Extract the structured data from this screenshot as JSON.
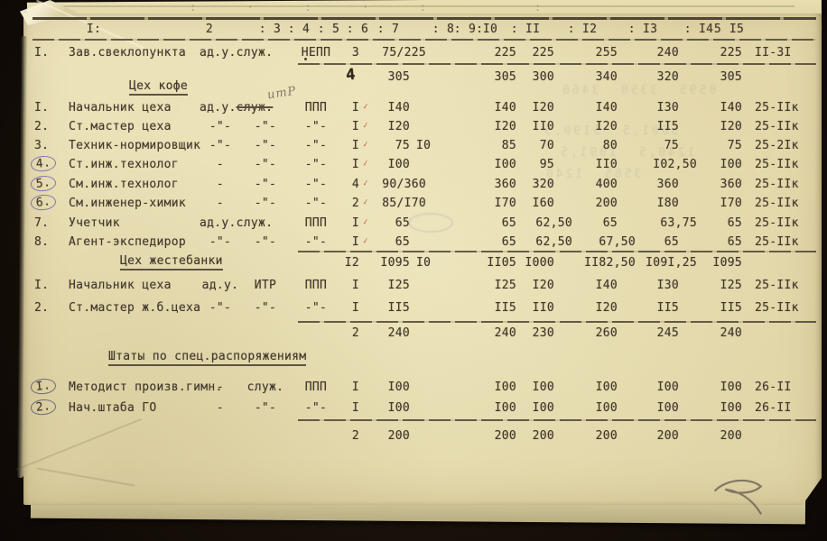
{
  "document": {
    "kind": "Typewritten staff schedule page (Russian), scanned archival sheet",
    "header_cells": [
      "I:",
      "2",
      ": 3",
      ": 4",
      ": 5",
      ": 6",
      ": 7",
      ": 8",
      ": 9:",
      "I0",
      ": II",
      ": I2",
      ": I3",
      ": I4",
      "5",
      "I5"
    ],
    "sections": {
      "coffee": "Цех кофе",
      "tin": "Цех жестебанки",
      "special": "Штаты по спец.распоряжениям"
    },
    "rows": [
      {
        "id": "r1",
        "num": "I.",
        "name": "Зав.свеклопункта",
        "cells": {
          "c34": "ад.у.служ.",
          "c5": "НЕПП",
          "c6": "3",
          "c7": "75/225",
          "c10": "225",
          "c11": "225",
          "c12": "255",
          "c13": "240",
          "c14": "225",
          "c15": "II-3I"
        }
      },
      {
        "id": "t1",
        "cells": {
          "c7": "305",
          "c10": "305",
          "c11": "300",
          "c12": "340",
          "c13": "320",
          "c14": "305"
        }
      },
      {
        "id": "k1",
        "num": "I.",
        "name": "Начальник цеха",
        "struck": [
          "ад.у.",
          "служ."
        ],
        "cells": {
          "c5": "ППП",
          "c6": "I",
          "c7": "I40",
          "c10": "I40",
          "c11": "I20",
          "c12": "I40",
          "c13": "I30",
          "c14": "I40",
          "c15": "25-IIк"
        },
        "tick": true
      },
      {
        "id": "k2",
        "num": "2.",
        "name": "Ст.мастер цеха",
        "cells": {
          "c3": "-\"-",
          "c4": "-\"-",
          "c5": "-\"-",
          "c6": "I",
          "c7": "I20",
          "c10": "I20",
          "c11": "II0",
          "c12": "I20",
          "c13": "II5",
          "c14": "I20",
          "c15": "25-IIк"
        },
        "tick": true
      },
      {
        "id": "k3",
        "num": "3.",
        "name": "Техник-нормировщик",
        "cells": {
          "c3": "-\"-",
          "c4": "-\"-",
          "c5": "-\"-",
          "c6": "I",
          "c7": "75",
          "c89": "I0",
          "c10": "85",
          "c11": "70",
          "c12": "80",
          "c13": "75",
          "c14": "75",
          "c15": "25-2Iк"
        },
        "tick": true
      },
      {
        "id": "k4",
        "num": "4.",
        "circled": true,
        "name": "Ст.инж.технолог",
        "cells": {
          "c3": "-",
          "c4": "-\"-",
          "c5": "-\"-",
          "c6": "I",
          "c7": "I00",
          "c10": "I00",
          "c11": "95",
          "c12": "II0",
          "c13": "I02,50",
          "c14": "I00",
          "c15": "25-IIк"
        },
        "tick": true
      },
      {
        "id": "k5",
        "num": "5.",
        "circled": true,
        "name": "См.инж.технолог",
        "cells": {
          "c3": "-",
          "c4": "-\"-",
          "c5": "-\"-",
          "c6": "4",
          "c7": "90/360",
          "c10": "360",
          "c11": "320",
          "c12": "400",
          "c13": "360",
          "c14": "360",
          "c15": "25-IIк"
        },
        "tick": true
      },
      {
        "id": "k6",
        "num": "6.",
        "circled": true,
        "name": "См.инженер-химик",
        "cells": {
          "c3": "-",
          "c4": "-\"-",
          "c5": "-\"-",
          "c6": "2",
          "c7": "85/I70",
          "c10": "I70",
          "c11": "I60",
          "c12": "200",
          "c13": "I80",
          "c14": "I70",
          "c15": "25-IIк"
        },
        "tick": true
      },
      {
        "id": "k7",
        "num": "7.",
        "name": "Учетчик",
        "cells": {
          "c34": "ад.у.служ.",
          "c5": "ППП",
          "c6": "I",
          "c7": "65",
          "c10": "65",
          "c11": "62,50",
          "c12": "65",
          "c13": "63,75",
          "c14": "65",
          "c15": "25-IIк"
        },
        "tick": true
      },
      {
        "id": "k8",
        "num": "8.",
        "name": "Агент-экспедирор",
        "cells": {
          "c3": "-\"-",
          "c4": "-\"-",
          "c5": "-\"-",
          "c6": "I",
          "c7": "65",
          "c10": "65",
          "c11": "62,50",
          "c12": "67,50",
          "c13": "65",
          "c14": "65",
          "c15": "25-IIк"
        },
        "tick": true
      },
      {
        "id": "st1",
        "cells": {
          "c6": "I2",
          "c7": "I095",
          "c89": "I0",
          "c10": "II05",
          "c11": "I000",
          "c12": "II82,50",
          "c13": "I09I,25",
          "c14": "I095"
        }
      },
      {
        "id": "z1",
        "num": "I.",
        "name": "Начальник цеха",
        "cells": {
          "c3": "ад.у.",
          "c4": "ИТР",
          "c5": "ППП",
          "c6": "I",
          "c7": "I25",
          "c10": "I25",
          "c11": "I20",
          "c12": "I40",
          "c13": "I30",
          "c14": "I25",
          "c15": "25-IIк"
        }
      },
      {
        "id": "z2",
        "num": "2.",
        "name": "Ст.мастер ж.б.цеха",
        "cells": {
          "c3": "-\"-",
          "c4": "-\"-",
          "c5": "-\"-",
          "c6": "I",
          "c7": "II5",
          "c10": "II5",
          "c11": "II0",
          "c12": "I20",
          "c13": "II5",
          "c14": "II5",
          "c15": "25-IIк"
        }
      },
      {
        "id": "t2",
        "cells": {
          "c6": "2",
          "c7": "240",
          "c10": "240",
          "c11": "230",
          "c12": "260",
          "c13": "245",
          "c14": "240"
        }
      },
      {
        "id": "s1",
        "num": "I.",
        "circled": true,
        "name": "Методист произв.гимн.",
        "cells": {
          "c3": "-",
          "c4": "служ.",
          "c5": "ППП",
          "c6": "I",
          "c7": "I00",
          "c10": "I00",
          "c11": "I00",
          "c12": "I00",
          "c13": "I00",
          "c14": "I00",
          "c15": "26-II"
        }
      },
      {
        "id": "s2",
        "num": "2.",
        "circled": true,
        "name": "Нач.штаба ГО",
        "cells": {
          "c3": "-",
          "c4": "-\"-",
          "c5": "-\"-",
          "c6": "I",
          "c7": "I00",
          "c10": "I00",
          "c11": "I00",
          "c12": "I00",
          "c13": "I00",
          "c14": "I00",
          "c15": "26-II"
        }
      },
      {
        "id": "t3",
        "cells": {
          "c6": "2",
          "c7": "200",
          "c10": "200",
          "c11": "200",
          "c12": "200",
          "c13": "200",
          "c14": "200"
        }
      }
    ],
    "annotations": {
      "itr_pencil": "итР",
      "total_overwrite": "4",
      "prev_page_marks": ":  ·  :  ·  :     :",
      "bleedthrough": [
        "0595  3350  3460",
        "5601,5  5190,5",
        "1240,5  1091,5",
        "3585  1240"
      ]
    }
  }
}
